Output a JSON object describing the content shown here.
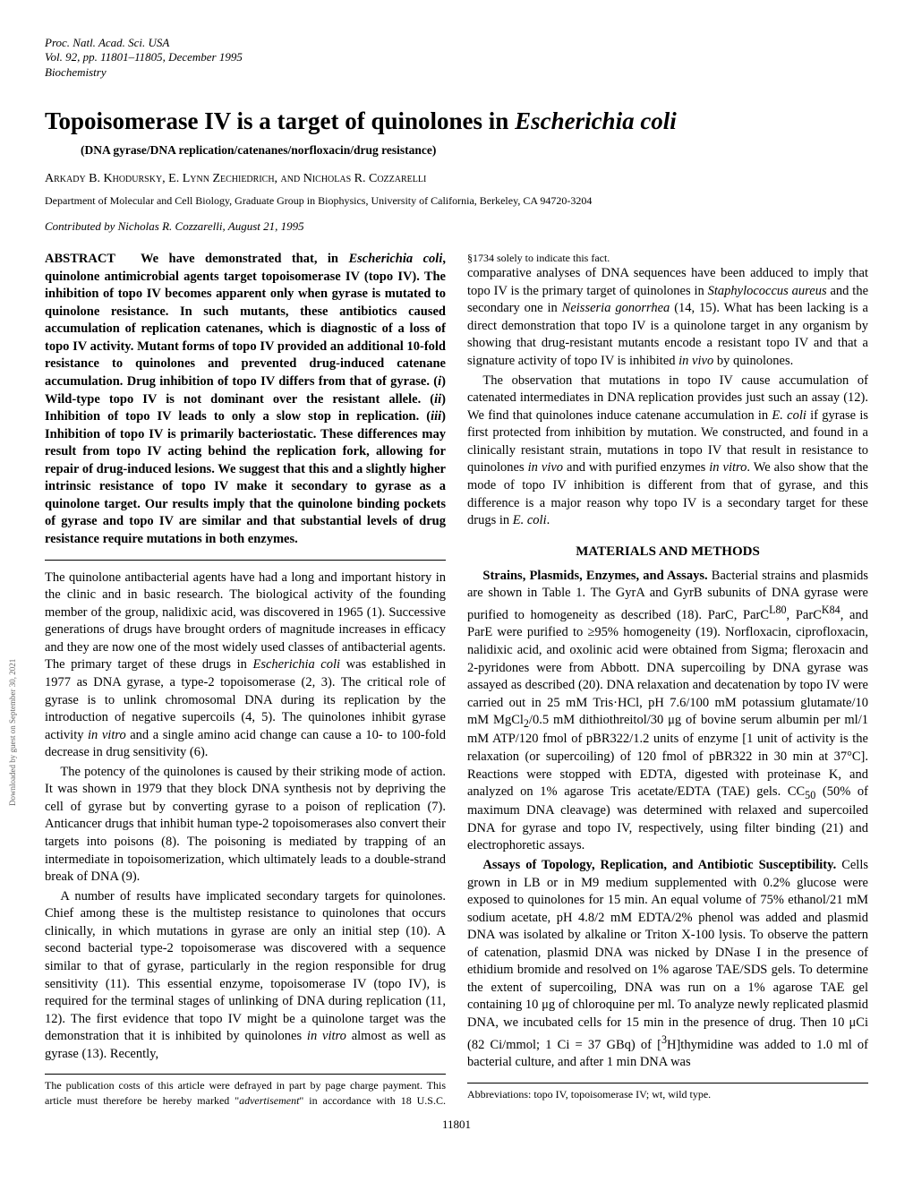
{
  "header": {
    "line1": "Proc. Natl. Acad. Sci. USA",
    "line2": "Vol. 92, pp. 11801–11805, December 1995",
    "line3": "Biochemistry"
  },
  "title_pre": "Topoisomerase IV is a target of quinolones in ",
  "title_latin": "Escherichia coli",
  "subtitle": "(DNA gyrase/DNA replication/catenanes/norfloxacin/drug resistance)",
  "authors": "Arkady B. Khodursky, E. Lynn Zechiedrich, and Nicholas R. Cozzarelli",
  "affiliation": "Department of Molecular and Cell Biology, Graduate Group in Biophysics, University of California, Berkeley, CA 94720-3204",
  "contributed": "Contributed by Nicholas R. Cozzarelli, August 21, 1995",
  "abstract_label": "ABSTRACT",
  "abstract_html": "We have demonstrated that, in <span class=\"latin\">Escherichia coli</span>, quinolone antimicrobial agents target topoisomerase IV (topo IV). The inhibition of topo IV becomes apparent only when gyrase is mutated to quinolone resistance. In such mutants, these antibiotics caused accumulation of replication catenanes, which is diagnostic of a loss of topo IV activity. Mutant forms of topo IV provided an additional 10-fold resistance to quinolones and prevented drug-induced catenane accumulation. Drug inhibition of topo IV differs from that of gyrase. (<span class=\"latin\">i</span>) Wild-type topo IV is not dominant over the resistant allele. (<span class=\"latin\">ii</span>) Inhibition of topo IV leads to only a slow stop in replication. (<span class=\"latin\">iii</span>) Inhibition of topo IV is primarily bacteriostatic. These differences may result from topo IV acting behind the replication fork, allowing for repair of drug-induced lesions. We suggest that this and a slightly higher intrinsic resistance of topo IV make it secondary to gyrase as a quinolone target. Our results imply that the quinolone binding pockets of gyrase and topo IV are similar and that substantial levels of drug resistance require mutations in both enzymes.",
  "body": {
    "p1": "The quinolone antibacterial agents have had a long and important history in the clinic and in basic research. The biological activity of the founding member of the group, nalidixic acid, was discovered in 1965 (1). Successive generations of drugs have brought orders of magnitude increases in efficacy and they are now one of the most widely used classes of antibacterial agents. The primary target of these drugs in <span class=\"latin\">Escherichia coli</span> was established in 1977 as DNA gyrase, a type-2 topoisomerase (2, 3). The critical role of gyrase is to unlink chromosomal DNA during its replication by the introduction of negative supercoils (4, 5). The quinolones inhibit gyrase activity <span class=\"latin\">in vitro</span> and a single amino acid change can cause a 10- to 100-fold decrease in drug sensitivity (6).",
    "p2": "The potency of the quinolones is caused by their striking mode of action. It was shown in 1979 that they block DNA synthesis not by depriving the cell of gyrase but by converting gyrase to a poison of replication (7). Anticancer drugs that inhibit human type-2 topoisomerases also convert their targets into poisons (8). The poisoning is mediated by trapping of an intermediate in topoisomerization, which ultimately leads to a double-strand break of DNA (9).",
    "p3": "A number of results have implicated secondary targets for quinolones. Chief among these is the multistep resistance to quinolones that occurs clinically, in which mutations in gyrase are only an initial step (10). A second bacterial type-2 topoisomerase was discovered with a sequence similar to that of gyrase, particularly in the region responsible for drug sensitivity (11). This essential enzyme, topoisomerase IV (topo IV), is required for the terminal stages of unlinking of DNA during replication (11, 12). The first evidence that topo IV might be a quinolone target was the demonstration that it is inhibited by quinolones <span class=\"latin\">in vitro</span> almost as well as gyrase (13). Recently,",
    "p4": "comparative analyses of DNA sequences have been adduced to imply that topo IV is the primary target of quinolones in <span class=\"latin\">Staphylococcus aureus</span> and the secondary one in <span class=\"latin\">Neisseria gonorrhea</span> (14, 15). What has been lacking is a direct demonstration that topo IV is a quinolone target in any organism by showing that drug-resistant mutants encode a resistant topo IV and that a signature activity of topo IV is inhibited <span class=\"latin\">in vivo</span> by quinolones.",
    "p5": "The observation that mutations in topo IV cause accumulation of catenated intermediates in DNA replication provides just such an assay (12). We find that quinolones induce catenane accumulation in <span class=\"latin\">E. coli</span> if gyrase is first protected from inhibition by mutation. We constructed, and found in a clinically resistant strain, mutations in topo IV that result in resistance to quinolones <span class=\"latin\">in vivo</span> and with purified enzymes <span class=\"latin\">in vitro</span>. We also show that the mode of topo IV inhibition is different from that of gyrase, and this difference is a major reason why topo IV is a secondary target for these drugs in <span class=\"latin\">E. coli</span>."
  },
  "materials_head": "MATERIALS AND METHODS",
  "materials": {
    "p1": "<b>Strains, Plasmids, Enzymes, and Assays.</b> Bacterial strains and plasmids are shown in Table 1. The GyrA and GyrB subunits of DNA gyrase were purified to homogeneity as described (18). ParC, ParC<sup>L80</sup>, ParC<sup>K84</sup>, and ParE were purified to ≥95% homogeneity (19). Norfloxacin, ciprofloxacin, nalidixic acid, and oxolinic acid were obtained from Sigma; fleroxacin and 2-pyridones were from Abbott. DNA supercoiling by DNA gyrase was assayed as described (20). DNA relaxation and decatenation by topo IV were carried out in 25 mM Tris·HCl, pH 7.6/100 mM potassium glutamate/10 mM MgCl<sub>2</sub>/0.5 mM dithiothreitol/30 μg of bovine serum albumin per ml/1 mM ATP/120 fmol of pBR322/1.2 units of enzyme [1 unit of activity is the relaxation (or supercoiling) of 120 fmol of pBR322 in 30 min at 37°C]. Reactions were stopped with EDTA, digested with proteinase K, and analyzed on 1% agarose Tris acetate/EDTA (TAE) gels. CC<sub>50</sub> (50% of maximum DNA cleavage) was determined with relaxed and supercoiled DNA for gyrase and topo IV, respectively, using filter binding (21) and electrophoretic assays.",
    "p2": "<b>Assays of Topology, Replication, and Antibiotic Susceptibility.</b> Cells grown in LB or in M9 medium supplemented with 0.2% glucose were exposed to quinolones for 15 min. An equal volume of 75% ethanol/21 mM sodium acetate, pH 4.8/2 mM EDTA/2% phenol was added and plasmid DNA was isolated by alkaline or Triton X-100 lysis. To observe the pattern of catenation, plasmid DNA was nicked by DNase I in the presence of ethidium bromide and resolved on 1% agarose TAE/SDS gels. To determine the extent of supercoiling, DNA was run on a 1% agarose TAE gel containing 10 μg of chloroquine per ml. To analyze newly replicated plasmid DNA, we incubated cells for 15 min in the presence of drug. Then 10 μCi (82 Ci/mmol; 1 Ci = 37 GBq) of [<sup>3</sup>H]thymidine was added to 1.0 ml of bacterial culture, and after 1 min DNA was"
  },
  "footnote_left": "The publication costs of this article were defrayed in part by page charge payment. This article must therefore be hereby marked \"<span class=\"latin\">advertisement</span>\" in accordance with 18 U.S.C. §1734 solely to indicate this fact.",
  "footnote_right": "Abbreviations: topo IV, topoisomerase IV; wt, wild type.",
  "pagenum": "11801",
  "sidetext": "Downloaded by guest on September 30, 2021"
}
